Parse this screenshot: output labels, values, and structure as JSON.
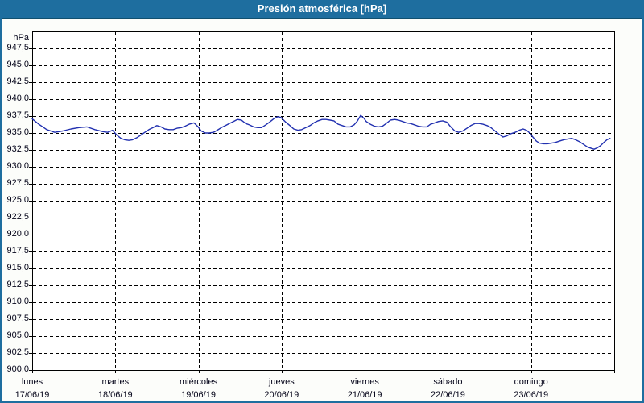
{
  "window": {
    "title": "Presión atmosférica [hPa]"
  },
  "colors": {
    "titlebar_bg": "#1e6e9f",
    "titlebar_text": "#ffffff",
    "frame": "#1e6e9f",
    "page_bg": "#fcfdfa",
    "plot_bg": "#ffffff",
    "grid": "#000000",
    "axis": "#000000",
    "label": "#05051a",
    "series": "#2231b0"
  },
  "chart_data": {
    "type": "line",
    "title": "Presión atmosférica [hPa]",
    "y_unit_label": "hPa",
    "grid": "dashed",
    "legend": "none",
    "y_axis": {
      "min": 900,
      "max": 950,
      "step": 2.5,
      "ticks": [
        {
          "value": 947.5,
          "label": "947,5"
        },
        {
          "value": 945.0,
          "label": "945,0"
        },
        {
          "value": 942.5,
          "label": "942,5"
        },
        {
          "value": 940.0,
          "label": "940,0"
        },
        {
          "value": 937.5,
          "label": "937,5"
        },
        {
          "value": 935.0,
          "label": "935,0"
        },
        {
          "value": 932.5,
          "label": "932,5"
        },
        {
          "value": 930.0,
          "label": "930,0"
        },
        {
          "value": 927.5,
          "label": "927,5"
        },
        {
          "value": 925.0,
          "label": "925,0"
        },
        {
          "value": 922.5,
          "label": "922,5"
        },
        {
          "value": 920.0,
          "label": "920,0"
        },
        {
          "value": 917.5,
          "label": "917,5"
        },
        {
          "value": 915.0,
          "label": "915,0"
        },
        {
          "value": 912.5,
          "label": "912,5"
        },
        {
          "value": 910.0,
          "label": "910,0"
        },
        {
          "value": 907.5,
          "label": "907,5"
        },
        {
          "value": 905.0,
          "label": "905,0"
        },
        {
          "value": 902.5,
          "label": "902,5"
        },
        {
          "value": 900.0,
          "label": "900,0"
        }
      ]
    },
    "x_axis": {
      "hours_total": 168,
      "days": [
        {
          "name": "lunes",
          "date": "17/06/19"
        },
        {
          "name": "martes",
          "date": "18/06/19"
        },
        {
          "name": "miércoles",
          "date": "19/06/19"
        },
        {
          "name": "jueves",
          "date": "20/06/19"
        },
        {
          "name": "viernes",
          "date": "21/06/19"
        },
        {
          "name": "sábado",
          "date": "22/06/19"
        },
        {
          "name": "domingo",
          "date": "23/06/19"
        }
      ]
    },
    "series": [
      {
        "name": "Presión atmosférica",
        "unit": "hPa",
        "points_t_hours_p_hpa": [
          [
            0,
            937.1
          ],
          [
            1.9,
            936.3
          ],
          [
            4.2,
            935.5
          ],
          [
            6.5,
            935.1
          ],
          [
            8.8,
            935.3
          ],
          [
            11.2,
            935.6
          ],
          [
            13.5,
            935.8
          ],
          [
            15.8,
            935.9
          ],
          [
            18.1,
            935.5
          ],
          [
            20.4,
            935.2
          ],
          [
            21.8,
            935.1
          ],
          [
            23.2,
            935.4
          ],
          [
            24.4,
            934.7
          ],
          [
            25.6,
            934.2
          ],
          [
            26.7,
            934.0
          ],
          [
            27.9,
            933.9
          ],
          [
            29.0,
            934.0
          ],
          [
            30.2,
            934.3
          ],
          [
            31.4,
            934.7
          ],
          [
            32.5,
            935.1
          ],
          [
            33.7,
            935.5
          ],
          [
            34.9,
            935.8
          ],
          [
            36.0,
            936.1
          ],
          [
            37.2,
            935.9
          ],
          [
            38.3,
            935.6
          ],
          [
            39.5,
            935.5
          ],
          [
            40.7,
            935.5
          ],
          [
            41.8,
            935.7
          ],
          [
            43.0,
            935.8
          ],
          [
            44.1,
            936.0
          ],
          [
            45.3,
            936.3
          ],
          [
            46.7,
            936.5
          ],
          [
            47.9,
            935.9
          ],
          [
            48.8,
            935.3
          ],
          [
            50.0,
            935.0
          ],
          [
            51.1,
            935.0
          ],
          [
            52.3,
            935.1
          ],
          [
            53.4,
            935.4
          ],
          [
            54.6,
            935.8
          ],
          [
            55.8,
            936.1
          ],
          [
            56.9,
            936.4
          ],
          [
            58.1,
            936.7
          ],
          [
            59.2,
            937.0
          ],
          [
            60.4,
            936.9
          ],
          [
            61.6,
            936.4
          ],
          [
            62.7,
            936.2
          ],
          [
            63.9,
            935.9
          ],
          [
            65.1,
            935.8
          ],
          [
            66.2,
            935.8
          ],
          [
            67.4,
            936.2
          ],
          [
            68.5,
            936.6
          ],
          [
            69.7,
            937.1
          ],
          [
            70.9,
            937.4
          ],
          [
            71.8,
            937.3
          ],
          [
            73.2,
            936.6
          ],
          [
            74.4,
            936.1
          ],
          [
            75.5,
            935.6
          ],
          [
            76.7,
            935.4
          ],
          [
            77.8,
            935.5
          ],
          [
            79.0,
            935.8
          ],
          [
            80.2,
            936.1
          ],
          [
            81.3,
            936.5
          ],
          [
            82.5,
            936.8
          ],
          [
            83.7,
            937.0
          ],
          [
            84.8,
            937.0
          ],
          [
            86.0,
            936.9
          ],
          [
            87.1,
            936.8
          ],
          [
            88.3,
            936.3
          ],
          [
            89.5,
            936.1
          ],
          [
            90.6,
            935.9
          ],
          [
            91.8,
            935.9
          ],
          [
            92.9,
            936.2
          ],
          [
            93.9,
            936.8
          ],
          [
            94.8,
            937.6
          ],
          [
            95.7,
            937.2
          ],
          [
            96.4,
            936.7
          ],
          [
            97.6,
            936.3
          ],
          [
            98.8,
            936.0
          ],
          [
            99.9,
            935.9
          ],
          [
            101.1,
            936.0
          ],
          [
            102.2,
            936.4
          ],
          [
            103.4,
            936.9
          ],
          [
            104.6,
            937.0
          ],
          [
            105.7,
            936.9
          ],
          [
            106.9,
            936.7
          ],
          [
            108.0,
            936.5
          ],
          [
            109.2,
            936.4
          ],
          [
            110.4,
            936.2
          ],
          [
            111.5,
            936.0
          ],
          [
            112.7,
            935.9
          ],
          [
            113.9,
            935.9
          ],
          [
            115.0,
            936.3
          ],
          [
            116.2,
            936.5
          ],
          [
            117.3,
            936.7
          ],
          [
            118.5,
            936.8
          ],
          [
            119.7,
            936.6
          ],
          [
            120.8,
            935.9
          ],
          [
            122.0,
            935.3
          ],
          [
            123.1,
            935.1
          ],
          [
            124.3,
            935.3
          ],
          [
            125.5,
            935.7
          ],
          [
            126.6,
            936.1
          ],
          [
            127.8,
            936.4
          ],
          [
            129.0,
            936.4
          ],
          [
            130.1,
            936.3
          ],
          [
            131.3,
            936.1
          ],
          [
            132.4,
            935.8
          ],
          [
            133.6,
            935.3
          ],
          [
            134.8,
            934.8
          ],
          [
            135.9,
            934.4
          ],
          [
            137.1,
            934.6
          ],
          [
            138.2,
            934.9
          ],
          [
            139.4,
            935.1
          ],
          [
            140.6,
            935.4
          ],
          [
            141.7,
            935.6
          ],
          [
            142.7,
            935.4
          ],
          [
            143.6,
            935.0
          ],
          [
            144.5,
            934.4
          ],
          [
            145.5,
            933.8
          ],
          [
            146.4,
            933.5
          ],
          [
            147.6,
            933.4
          ],
          [
            148.7,
            933.4
          ],
          [
            149.9,
            933.5
          ],
          [
            151.0,
            933.6
          ],
          [
            152.2,
            933.8
          ],
          [
            153.4,
            934.0
          ],
          [
            154.5,
            934.1
          ],
          [
            155.7,
            934.2
          ],
          [
            156.8,
            934.0
          ],
          [
            158.0,
            933.7
          ],
          [
            159.2,
            933.3
          ],
          [
            160.3,
            932.9
          ],
          [
            161.5,
            932.7
          ],
          [
            162.2,
            932.6
          ],
          [
            163.1,
            932.8
          ],
          [
            164.0,
            933.1
          ],
          [
            165.0,
            933.6
          ],
          [
            165.9,
            934.0
          ],
          [
            166.8,
            934.2
          ]
        ]
      }
    ]
  }
}
